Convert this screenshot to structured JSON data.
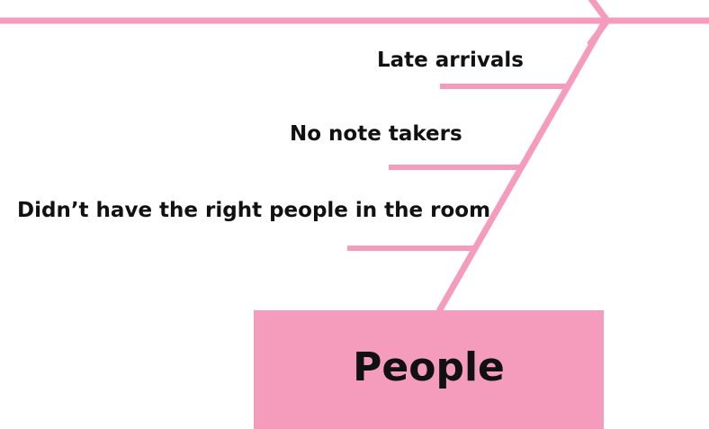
{
  "colors": {
    "accent": "#f59bbb",
    "text": "#111111",
    "background": "#ffffff"
  },
  "category": {
    "label": "People"
  },
  "causes": [
    {
      "label": "Late arrivals"
    },
    {
      "label": "No note takers"
    },
    {
      "label": "Didn’t have the right people in the room"
    }
  ]
}
